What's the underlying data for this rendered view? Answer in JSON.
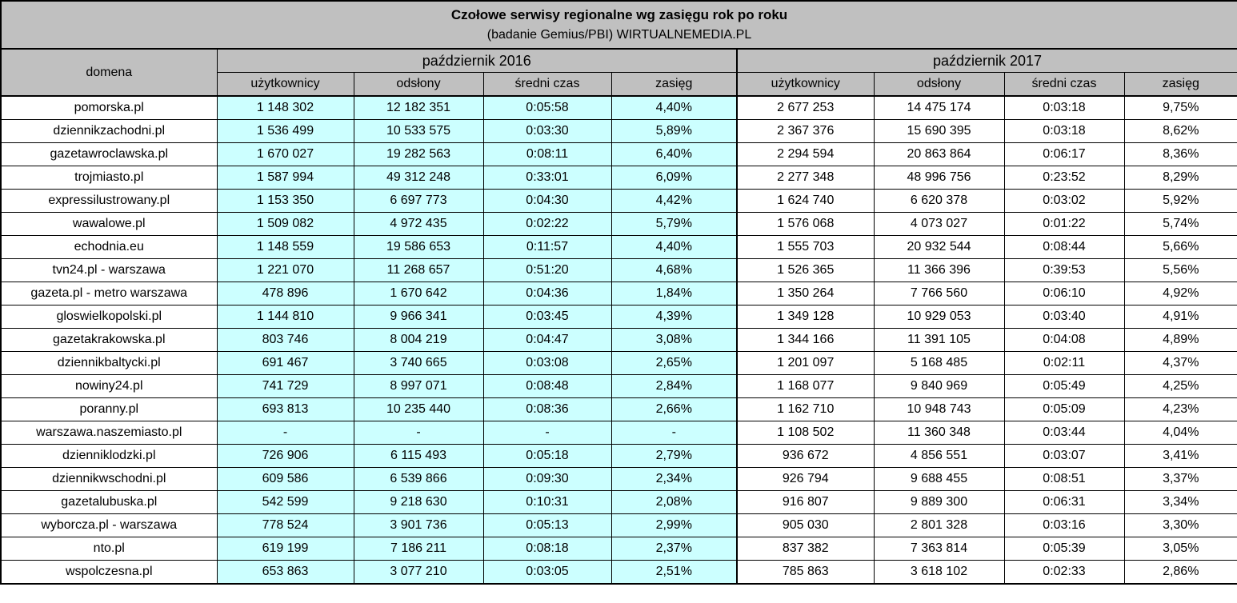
{
  "chart_data": {
    "type": "table",
    "title": "Czołowe serwisy regionalne wg zasięgu rok po roku",
    "subtitle": "(badanie Gemius/PBI) WIRTUALNEMEDIA.PL",
    "domain_header": "domena",
    "groups": [
      {
        "label": "październik 2016",
        "columns": [
          "użytkownicy",
          "odsłony",
          "średni czas",
          "zasięg"
        ]
      },
      {
        "label": "październik 2017",
        "columns": [
          "użytkownicy",
          "odsłony",
          "średni czas",
          "zasięg"
        ]
      }
    ],
    "rows": [
      {
        "domain": "pomorska.pl",
        "y2016": [
          "1 148 302",
          "12 182 351",
          "0:05:58",
          "4,40%"
        ],
        "y2017": [
          "2 677 253",
          "14 475 174",
          "0:03:18",
          "9,75%"
        ]
      },
      {
        "domain": "dziennikzachodni.pl",
        "y2016": [
          "1 536 499",
          "10 533 575",
          "0:03:30",
          "5,89%"
        ],
        "y2017": [
          "2 367 376",
          "15 690 395",
          "0:03:18",
          "8,62%"
        ]
      },
      {
        "domain": "gazetawroclawska.pl",
        "y2016": [
          "1 670 027",
          "19 282 563",
          "0:08:11",
          "6,40%"
        ],
        "y2017": [
          "2 294 594",
          "20 863 864",
          "0:06:17",
          "8,36%"
        ]
      },
      {
        "domain": "trojmiasto.pl",
        "y2016": [
          "1 587 994",
          "49 312 248",
          "0:33:01",
          "6,09%"
        ],
        "y2017": [
          "2 277 348",
          "48 996 756",
          "0:23:52",
          "8,29%"
        ]
      },
      {
        "domain": "expressilustrowany.pl",
        "y2016": [
          "1 153 350",
          "6 697 773",
          "0:04:30",
          "4,42%"
        ],
        "y2017": [
          "1 624 740",
          "6 620 378",
          "0:03:02",
          "5,92%"
        ]
      },
      {
        "domain": "wawalowe.pl",
        "y2016": [
          "1 509 082",
          "4 972 435",
          "0:02:22",
          "5,79%"
        ],
        "y2017": [
          "1 576 068",
          "4 073 027",
          "0:01:22",
          "5,74%"
        ]
      },
      {
        "domain": "echodnia.eu",
        "y2016": [
          "1 148 559",
          "19 586 653",
          "0:11:57",
          "4,40%"
        ],
        "y2017": [
          "1 555 703",
          "20 932 544",
          "0:08:44",
          "5,66%"
        ]
      },
      {
        "domain": "tvn24.pl - warszawa",
        "y2016": [
          "1 221 070",
          "11 268 657",
          "0:51:20",
          "4,68%"
        ],
        "y2017": [
          "1 526 365",
          "11 366 396",
          "0:39:53",
          "5,56%"
        ]
      },
      {
        "domain": "gazeta.pl - metro warszawa",
        "y2016": [
          "478 896",
          "1 670 642",
          "0:04:36",
          "1,84%"
        ],
        "y2017": [
          "1 350 264",
          "7 766 560",
          "0:06:10",
          "4,92%"
        ]
      },
      {
        "domain": "gloswielkopolski.pl",
        "y2016": [
          "1 144 810",
          "9 966 341",
          "0:03:45",
          "4,39%"
        ],
        "y2017": [
          "1 349 128",
          "10 929 053",
          "0:03:40",
          "4,91%"
        ]
      },
      {
        "domain": "gazetakrakowska.pl",
        "y2016": [
          "803 746",
          "8 004 219",
          "0:04:47",
          "3,08%"
        ],
        "y2017": [
          "1 344 166",
          "11 391 105",
          "0:04:08",
          "4,89%"
        ]
      },
      {
        "domain": "dziennikbaltycki.pl",
        "y2016": [
          "691 467",
          "3 740 665",
          "0:03:08",
          "2,65%"
        ],
        "y2017": [
          "1 201 097",
          "5 168 485",
          "0:02:11",
          "4,37%"
        ]
      },
      {
        "domain": "nowiny24.pl",
        "y2016": [
          "741 729",
          "8 997 071",
          "0:08:48",
          "2,84%"
        ],
        "y2017": [
          "1 168 077",
          "9 840 969",
          "0:05:49",
          "4,25%"
        ]
      },
      {
        "domain": "poranny.pl",
        "y2016": [
          "693 813",
          "10 235 440",
          "0:08:36",
          "2,66%"
        ],
        "y2017": [
          "1 162 710",
          "10 948 743",
          "0:05:09",
          "4,23%"
        ]
      },
      {
        "domain": "warszawa.naszemiasto.pl",
        "y2016": [
          "-",
          "-",
          "-",
          "-"
        ],
        "y2017": [
          "1 108 502",
          "11 360 348",
          "0:03:44",
          "4,04%"
        ]
      },
      {
        "domain": "dzienniklodzki.pl",
        "y2016": [
          "726 906",
          "6 115 493",
          "0:05:18",
          "2,79%"
        ],
        "y2017": [
          "936 672",
          "4 856 551",
          "0:03:07",
          "3,41%"
        ]
      },
      {
        "domain": "dziennikwschodni.pl",
        "y2016": [
          "609 586",
          "6 539 866",
          "0:09:30",
          "2,34%"
        ],
        "y2017": [
          "926 794",
          "9 688 455",
          "0:08:51",
          "3,37%"
        ]
      },
      {
        "domain": "gazetalubuska.pl",
        "y2016": [
          "542 599",
          "9 218 630",
          "0:10:31",
          "2,08%"
        ],
        "y2017": [
          "916 807",
          "9 889 300",
          "0:06:31",
          "3,34%"
        ]
      },
      {
        "domain": "wyborcza.pl - warszawa",
        "y2016": [
          "778 524",
          "3 901 736",
          "0:05:13",
          "2,99%"
        ],
        "y2017": [
          "905 030",
          "2 801 328",
          "0:03:16",
          "3,30%"
        ]
      },
      {
        "domain": "nto.pl",
        "y2016": [
          "619 199",
          "7 186 211",
          "0:08:18",
          "2,37%"
        ],
        "y2017": [
          "837 382",
          "7 363 814",
          "0:05:39",
          "3,05%"
        ]
      },
      {
        "domain": "wspolczesna.pl",
        "y2016": [
          "653 863",
          "3 077 210",
          "0:03:05",
          "2,51%"
        ],
        "y2017": [
          "785 863",
          "3 618 102",
          "0:02:33",
          "2,86%"
        ]
      }
    ]
  },
  "colors": {
    "header_bg": "#c0c0c0",
    "highlight_2016_bg": "#ccffff",
    "row_bg": "#ffffff",
    "border": "#000000",
    "text": "#000000"
  }
}
